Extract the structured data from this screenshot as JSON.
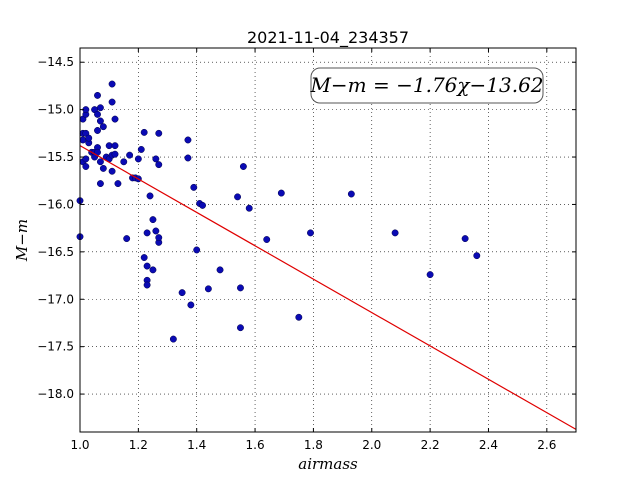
{
  "chart_data": {
    "type": "scatter",
    "title": "2021-11-04_234357",
    "xlabel": "airmass",
    "ylabel": "M−m",
    "xlim": [
      1.0,
      2.7
    ],
    "ylim": [
      -18.4,
      -14.35
    ],
    "y_inverted": true,
    "grid": true,
    "x_ticks": [
      {
        "v": 1.0,
        "label": "1.0"
      },
      {
        "v": 1.2,
        "label": "1.2"
      },
      {
        "v": 1.4,
        "label": "1.4"
      },
      {
        "v": 1.6,
        "label": "1.6"
      },
      {
        "v": 1.8,
        "label": "1.8"
      },
      {
        "v": 2.0,
        "label": "2.0"
      },
      {
        "v": 2.2,
        "label": "2.2"
      },
      {
        "v": 2.4,
        "label": "2.4"
      },
      {
        "v": 2.6,
        "label": "2.6"
      }
    ],
    "y_ticks": [
      {
        "v": -14.5,
        "label": "−14.5"
      },
      {
        "v": -15.0,
        "label": "−15.0"
      },
      {
        "v": -15.5,
        "label": "−15.5"
      },
      {
        "v": -16.0,
        "label": "−16.0"
      },
      {
        "v": -16.5,
        "label": "−16.5"
      },
      {
        "v": -17.0,
        "label": "−17.0"
      },
      {
        "v": -17.5,
        "label": "−17.5"
      },
      {
        "v": -18.0,
        "label": "−18.0"
      }
    ],
    "annotation": "M−m = −1.76χ−13.62",
    "annotation_location": "top-right",
    "fit_line": {
      "slope": -1.76,
      "intercept": -13.62,
      "color": "#e00000"
    },
    "point_color": "#0a0ab4",
    "points": [
      [
        1.0,
        -15.96
      ],
      [
        1.0,
        -16.34
      ],
      [
        1.01,
        -15.1
      ],
      [
        1.01,
        -15.25
      ],
      [
        1.01,
        -15.32
      ],
      [
        1.01,
        -15.55
      ],
      [
        1.02,
        -15.05
      ],
      [
        1.02,
        -15.25
      ],
      [
        1.02,
        -15.6
      ],
      [
        1.02,
        -15.52
      ],
      [
        1.02,
        -15.0
      ],
      [
        1.03,
        -15.35
      ],
      [
        1.03,
        -15.3
      ],
      [
        1.04,
        -15.45
      ],
      [
        1.05,
        -15.0
      ],
      [
        1.05,
        -15.45
      ],
      [
        1.05,
        -15.5
      ],
      [
        1.06,
        -14.85
      ],
      [
        1.06,
        -15.22
      ],
      [
        1.06,
        -15.05
      ],
      [
        1.06,
        -15.4
      ],
      [
        1.06,
        -15.45
      ],
      [
        1.07,
        -14.98
      ],
      [
        1.07,
        -15.12
      ],
      [
        1.07,
        -15.55
      ],
      [
        1.07,
        -15.78
      ],
      [
        1.08,
        -15.18
      ],
      [
        1.08,
        -15.62
      ],
      [
        1.09,
        -15.5
      ],
      [
        1.1,
        -15.52
      ],
      [
        1.1,
        -15.38
      ],
      [
        1.11,
        -14.73
      ],
      [
        1.11,
        -14.92
      ],
      [
        1.11,
        -15.48
      ],
      [
        1.11,
        -15.65
      ],
      [
        1.12,
        -15.1
      ],
      [
        1.12,
        -15.38
      ],
      [
        1.12,
        -15.47
      ],
      [
        1.13,
        -15.78
      ],
      [
        1.15,
        -15.55
      ],
      [
        1.17,
        -15.48
      ],
      [
        1.18,
        -15.72
      ],
      [
        1.16,
        -16.36
      ],
      [
        1.19,
        -15.72
      ],
      [
        1.2,
        -15.52
      ],
      [
        1.2,
        -15.73
      ],
      [
        1.21,
        -15.42
      ],
      [
        1.22,
        -15.24
      ],
      [
        1.22,
        -16.56
      ],
      [
        1.23,
        -16.3
      ],
      [
        1.23,
        -16.65
      ],
      [
        1.23,
        -16.8
      ],
      [
        1.23,
        -16.85
      ],
      [
        1.24,
        -15.91
      ],
      [
        1.25,
        -16.16
      ],
      [
        1.25,
        -16.69
      ],
      [
        1.26,
        -15.52
      ],
      [
        1.26,
        -16.28
      ],
      [
        1.27,
        -15.25
      ],
      [
        1.27,
        -15.58
      ],
      [
        1.27,
        -16.4
      ],
      [
        1.27,
        -16.35
      ],
      [
        1.32,
        -17.42
      ],
      [
        1.35,
        -16.93
      ],
      [
        1.37,
        -15.32
      ],
      [
        1.37,
        -15.51
      ],
      [
        1.38,
        -17.06
      ],
      [
        1.39,
        -15.82
      ],
      [
        1.4,
        -16.48
      ],
      [
        1.41,
        -15.99
      ],
      [
        1.42,
        -16.01
      ],
      [
        1.44,
        -16.89
      ],
      [
        1.48,
        -16.69
      ],
      [
        1.54,
        -15.92
      ],
      [
        1.55,
        -17.3
      ],
      [
        1.55,
        -16.88
      ],
      [
        1.56,
        -15.6
      ],
      [
        1.58,
        -16.04
      ],
      [
        1.64,
        -16.37
      ],
      [
        1.69,
        -15.88
      ],
      [
        1.75,
        -17.19
      ],
      [
        1.79,
        -16.3
      ],
      [
        1.93,
        -15.89
      ],
      [
        2.08,
        -16.3
      ],
      [
        2.2,
        -16.74
      ],
      [
        2.32,
        -16.36
      ],
      [
        2.36,
        -16.54
      ]
    ]
  }
}
